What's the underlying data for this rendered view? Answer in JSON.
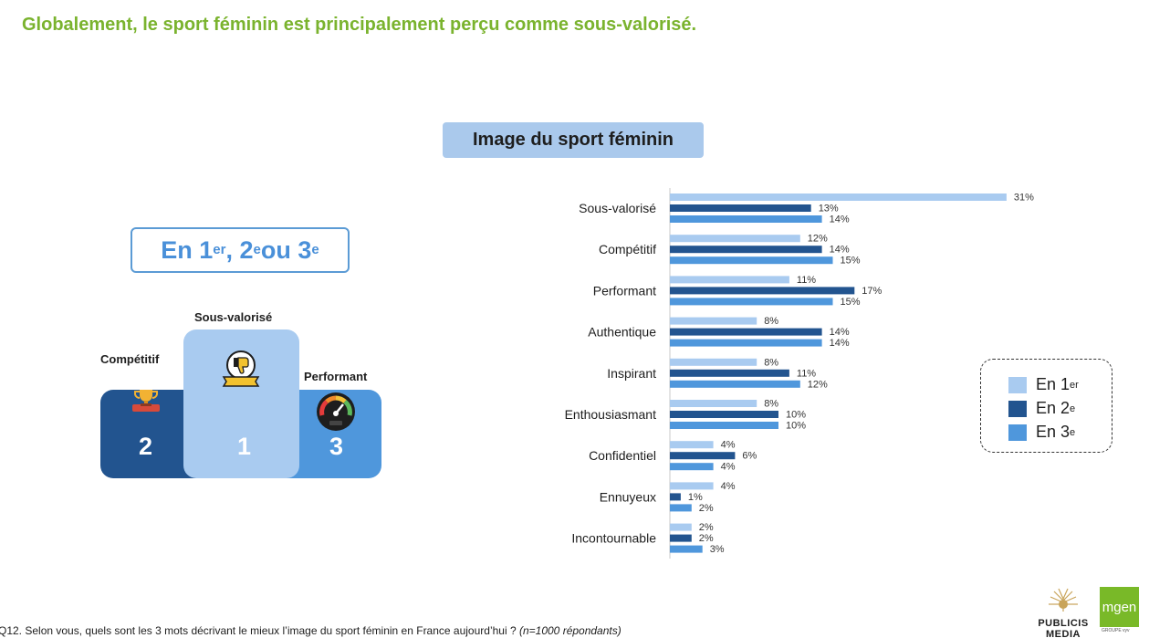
{
  "page": {
    "title": "Globalement, le sport féminin est principalement perçu comme sous-valorisé.",
    "footnote_question": "Q12. Selon vous, quels sont les 3 mots décrivant le mieux l’image du sport féminin en France aujourd’hui ?",
    "footnote_sample": "(n=1000 répondants)"
  },
  "rank_box": {
    "prefix": "En 1",
    "sup1": "er",
    "mid1": ", 2",
    "sup2": "e",
    "mid2": " ou 3",
    "sup3": "e"
  },
  "podium": {
    "first": {
      "label": "Sous-valorisé",
      "rank": "1",
      "icon": "thumbs-down-award-icon"
    },
    "second": {
      "label": "Compétitif",
      "rank": "2",
      "icon": "trophy-icon"
    },
    "third": {
      "label": "Performant",
      "rank": "3",
      "icon": "speedometer-icon"
    }
  },
  "legend": {
    "items": [
      {
        "text": "En 1",
        "sup": "er",
        "color": "#a9cbf0"
      },
      {
        "text": "En 2",
        "sup": "e",
        "color": "#22548f"
      },
      {
        "text": "En 3",
        "sup": "e",
        "color": "#4f97dc"
      }
    ]
  },
  "logos": {
    "publicis_line1": "PUBLICIS",
    "publicis_line2": "MEDIA",
    "mgen": "mgen",
    "mgen_sub": "GROUPE vyv"
  },
  "chart_data": {
    "type": "bar",
    "orientation": "horizontal",
    "title": "Image du sport féminin",
    "categories": [
      "Sous-valorisé",
      "Compétitif",
      "Performant",
      "Authentique",
      "Inspirant",
      "Enthousiasmant",
      "Confidentiel",
      "Ennuyeux",
      "Incontournable"
    ],
    "series": [
      {
        "name": "En 1er",
        "color": "#a9cbf0",
        "values": [
          31,
          12,
          11,
          8,
          8,
          8,
          4,
          4,
          2
        ]
      },
      {
        "name": "En 2e",
        "color": "#22548f",
        "values": [
          13,
          14,
          17,
          14,
          11,
          10,
          6,
          1,
          2
        ]
      },
      {
        "name": "En 3e",
        "color": "#4f97dc",
        "values": [
          14,
          15,
          15,
          14,
          12,
          10,
          4,
          2,
          3
        ]
      }
    ],
    "value_suffix": "%",
    "legend_position": "right",
    "grid": false
  }
}
